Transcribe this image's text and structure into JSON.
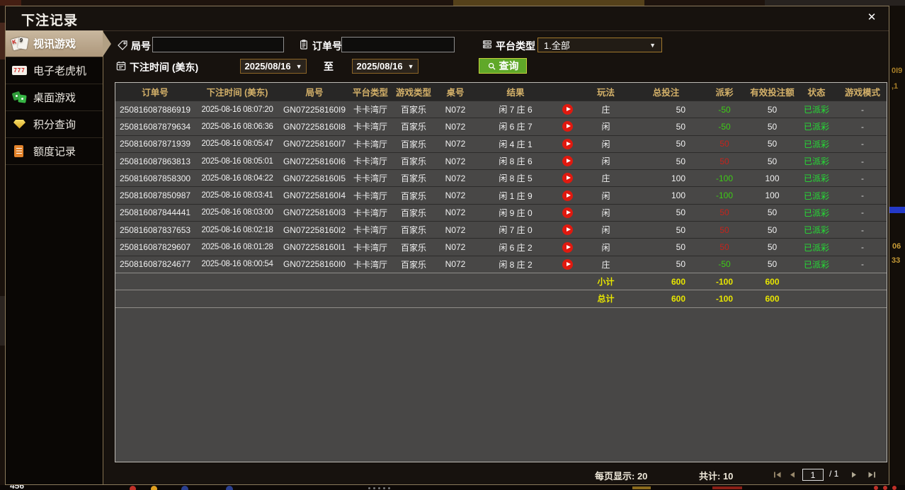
{
  "window": {
    "title": "下注记录",
    "close_icon": "✕"
  },
  "sidebar": {
    "items": [
      {
        "label": "视讯游戏",
        "icon": "playing-cards-icon",
        "active": true
      },
      {
        "label": "电子老虎机",
        "icon": "slot-777-icon",
        "active": false
      },
      {
        "label": "桌面游戏",
        "icon": "table-games-icon",
        "active": false
      },
      {
        "label": "积分查询",
        "icon": "points-gem-icon",
        "active": false
      },
      {
        "label": "额度记录",
        "icon": "quota-doc-icon",
        "active": false
      }
    ]
  },
  "filters": {
    "round_label": "局号",
    "round_value": "",
    "order_label": "订单号",
    "order_value": "",
    "platform_label": "平台类型",
    "platform_value": "1.全部",
    "time_label": "下注时间 (美东)",
    "date_from": "2025/08/16",
    "to_label": "至",
    "date_to": "2025/08/16",
    "search_label": "查询",
    "dropdown_arrow": "▼"
  },
  "table": {
    "headers": [
      "订单号",
      "下注时间 (美东)",
      "局号",
      "平台类型",
      "游戏类型",
      "桌号",
      "结果",
      "",
      "玩法",
      "总投注",
      "派彩",
      "有效投注额",
      "状态",
      "游戏模式"
    ],
    "rows": [
      {
        "order_no": "250816087886919",
        "bet_time": "2025-08-16 08:07:20",
        "round_no": "GN072258160I9",
        "platform": "卡卡湾厅",
        "game_type": "百家乐",
        "table_no": "N072",
        "result": "闲 7 庄 6",
        "play_method": "庄",
        "total_bet": "50",
        "payout": "-50",
        "payout_color": "green",
        "valid_bet": "50",
        "status": "已派彩",
        "mode": "-"
      },
      {
        "order_no": "250816087879634",
        "bet_time": "2025-08-16 08:06:36",
        "round_no": "GN072258160I8",
        "platform": "卡卡湾厅",
        "game_type": "百家乐",
        "table_no": "N072",
        "result": "闲 6 庄 7",
        "play_method": "闲",
        "total_bet": "50",
        "payout": "-50",
        "payout_color": "green",
        "valid_bet": "50",
        "status": "已派彩",
        "mode": "-"
      },
      {
        "order_no": "250816087871939",
        "bet_time": "2025-08-16 08:05:47",
        "round_no": "GN072258160I7",
        "platform": "卡卡湾厅",
        "game_type": "百家乐",
        "table_no": "N072",
        "result": "闲 4 庄 1",
        "play_method": "闲",
        "total_bet": "50",
        "payout": "50",
        "payout_color": "red",
        "valid_bet": "50",
        "status": "已派彩",
        "mode": "-"
      },
      {
        "order_no": "250816087863813",
        "bet_time": "2025-08-16 08:05:01",
        "round_no": "GN072258160I6",
        "platform": "卡卡湾厅",
        "game_type": "百家乐",
        "table_no": "N072",
        "result": "闲 8 庄 6",
        "play_method": "闲",
        "total_bet": "50",
        "payout": "50",
        "payout_color": "red",
        "valid_bet": "50",
        "status": "已派彩",
        "mode": "-"
      },
      {
        "order_no": "250816087858300",
        "bet_time": "2025-08-16 08:04:22",
        "round_no": "GN072258160I5",
        "platform": "卡卡湾厅",
        "game_type": "百家乐",
        "table_no": "N072",
        "result": "闲 8 庄 5",
        "play_method": "庄",
        "total_bet": "100",
        "payout": "-100",
        "payout_color": "green",
        "valid_bet": "100",
        "status": "已派彩",
        "mode": "-"
      },
      {
        "order_no": "250816087850987",
        "bet_time": "2025-08-16 08:03:41",
        "round_no": "GN072258160I4",
        "platform": "卡卡湾厅",
        "game_type": "百家乐",
        "table_no": "N072",
        "result": "闲 1 庄 9",
        "play_method": "闲",
        "total_bet": "100",
        "payout": "-100",
        "payout_color": "green",
        "valid_bet": "100",
        "status": "已派彩",
        "mode": "-"
      },
      {
        "order_no": "250816087844441",
        "bet_time": "2025-08-16 08:03:00",
        "round_no": "GN072258160I3",
        "platform": "卡卡湾厅",
        "game_type": "百家乐",
        "table_no": "N072",
        "result": "闲 9 庄 0",
        "play_method": "闲",
        "total_bet": "50",
        "payout": "50",
        "payout_color": "red",
        "valid_bet": "50",
        "status": "已派彩",
        "mode": "-"
      },
      {
        "order_no": "250816087837653",
        "bet_time": "2025-08-16 08:02:18",
        "round_no": "GN072258160I2",
        "platform": "卡卡湾厅",
        "game_type": "百家乐",
        "table_no": "N072",
        "result": "闲 7 庄 0",
        "play_method": "闲",
        "total_bet": "50",
        "payout": "50",
        "payout_color": "red",
        "valid_bet": "50",
        "status": "已派彩",
        "mode": "-"
      },
      {
        "order_no": "250816087829607",
        "bet_time": "2025-08-16 08:01:28",
        "round_no": "GN072258160I1",
        "platform": "卡卡湾厅",
        "game_type": "百家乐",
        "table_no": "N072",
        "result": "闲 6 庄 2",
        "play_method": "闲",
        "total_bet": "50",
        "payout": "50",
        "payout_color": "red",
        "valid_bet": "50",
        "status": "已派彩",
        "mode": "-"
      },
      {
        "order_no": "250816087824677",
        "bet_time": "2025-08-16 08:00:54",
        "round_no": "GN072258160I0",
        "platform": "卡卡湾厅",
        "game_type": "百家乐",
        "table_no": "N072",
        "result": "闲 8 庄 2",
        "play_method": "庄",
        "total_bet": "50",
        "payout": "-50",
        "payout_color": "green",
        "valid_bet": "50",
        "status": "已派彩",
        "mode": "-"
      }
    ],
    "subtotal": {
      "label": "小计",
      "total_bet": "600",
      "payout": "-100",
      "valid_bet": "600"
    },
    "grand_total": {
      "label": "总计",
      "total_bet": "600",
      "payout": "-100",
      "valid_bet": "600"
    }
  },
  "pagination": {
    "per_page_label": "每页显示: 20",
    "total_label": "共计: 10",
    "page_value": "1",
    "page_total": "/  1"
  },
  "background_fragments": {
    "right_texts": [
      "0I9",
      ",1",
      "06",
      "33"
    ],
    "bottom_text": "456"
  },
  "colors": {
    "dialog_border": "#8b7a5c",
    "active_tab": "#b2a084",
    "header_gold": "#d4b169",
    "win_red": "#c5231c",
    "loss_green": "#3ecb16",
    "status_green": "#25dd35",
    "total_yellow": "#e8e600",
    "search_green": "#60a829"
  }
}
